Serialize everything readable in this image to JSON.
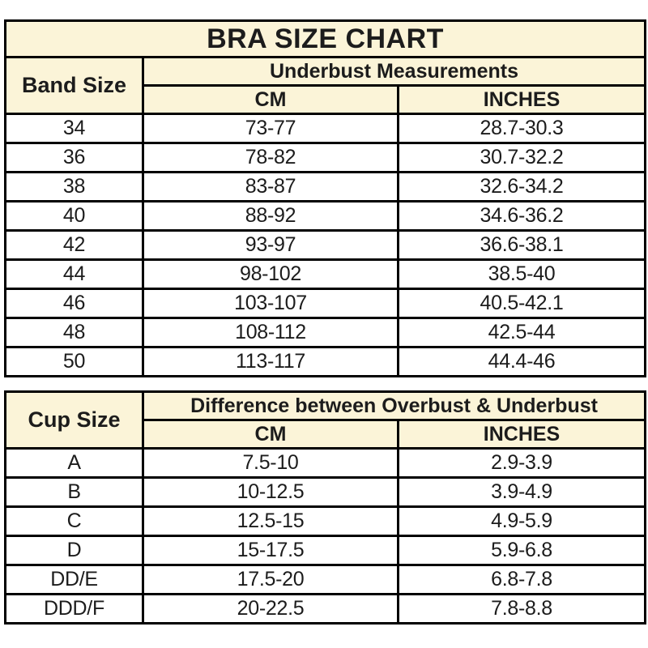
{
  "colors": {
    "header_bg": "#fbf4d8",
    "border": "#000000",
    "row_bg": "#ffffff",
    "text": "#1c1c1c"
  },
  "chart_data": [
    {
      "type": "table",
      "title": "BRA SIZE CHART",
      "corner_header": "Band Size",
      "group_header": "Underbust Measurements",
      "col_headers": [
        "CM",
        "INCHES"
      ],
      "rows": [
        [
          "34",
          "73-77",
          "28.7-30.3"
        ],
        [
          "36",
          "78-82",
          "30.7-32.2"
        ],
        [
          "38",
          "83-87",
          "32.6-34.2"
        ],
        [
          "40",
          "88-92",
          "34.6-36.2"
        ],
        [
          "42",
          "93-97",
          "36.6-38.1"
        ],
        [
          "44",
          "98-102",
          "38.5-40"
        ],
        [
          "46",
          "103-107",
          "40.5-42.1"
        ],
        [
          "48",
          "108-112",
          "42.5-44"
        ],
        [
          "50",
          "113-117",
          "44.4-46"
        ]
      ]
    },
    {
      "type": "table",
      "corner_header": "Cup Size",
      "group_header": "Difference between Overbust & Underbust",
      "col_headers": [
        "CM",
        "INCHES"
      ],
      "rows": [
        [
          "A",
          "7.5-10",
          "2.9-3.9"
        ],
        [
          "B",
          "10-12.5",
          "3.9-4.9"
        ],
        [
          "C",
          "12.5-15",
          "4.9-5.9"
        ],
        [
          "D",
          "15-17.5",
          "5.9-6.8"
        ],
        [
          "DD/E",
          "17.5-20",
          "6.8-7.8"
        ],
        [
          "DDD/F",
          "20-22.5",
          "7.8-8.8"
        ]
      ]
    }
  ]
}
